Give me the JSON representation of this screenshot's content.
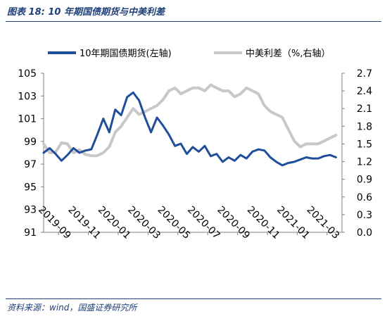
{
  "figure": {
    "title": "图表 18:  10 年期国债期货与中美利差",
    "source": "资料来源：wind，国盛证券研究所"
  },
  "colors": {
    "series1": "#1f4e9b",
    "series2": "#c8c8c8",
    "header": "#1f3f7a",
    "axis": "#7f7f7f",
    "text": "#000000"
  },
  "chart_data": {
    "type": "line",
    "legend_position": "top",
    "grid": false,
    "x_ticks": [
      "2019-09",
      "2019-11",
      "2020-01",
      "2020-03",
      "2020-05",
      "2020-07",
      "2020-09",
      "2020-11",
      "2021-01",
      "2021-03"
    ],
    "y_left": {
      "min": 91,
      "max": 105,
      "ticks": [
        "91",
        "93",
        "95",
        "97",
        "99",
        "101",
        "103",
        "105"
      ]
    },
    "y_right": {
      "min": 0,
      "max": 2.7,
      "ticks": [
        "0.0",
        "0.3",
        "0.6",
        "0.9",
        "1.2",
        "1.5",
        "1.8",
        "2.1",
        "2.4",
        "2.7"
      ]
    },
    "series": [
      {
        "name": "10年期国债期货(左轴)",
        "axis": "left",
        "x": [
          0,
          0.2,
          0.4,
          0.6,
          0.8,
          1.0,
          1.2,
          1.4,
          1.6,
          1.8,
          2.0,
          2.2,
          2.4,
          2.6,
          2.8,
          3.0,
          3.2,
          3.4,
          3.6,
          3.8,
          4.0,
          4.2,
          4.4,
          4.6,
          4.8,
          5.0,
          5.2,
          5.4,
          5.6,
          5.8,
          6.0,
          6.2,
          6.4,
          6.6,
          6.8,
          7.0,
          7.2,
          7.4,
          7.6,
          7.8,
          8.0,
          8.2,
          8.4,
          8.6,
          8.8,
          9.0,
          9.2,
          9.4,
          9.6,
          9.8
        ],
        "values": [
          98.0,
          98.4,
          97.9,
          97.3,
          97.8,
          98.4,
          98.0,
          98.2,
          98.3,
          99.6,
          101.0,
          99.8,
          101.8,
          101.3,
          102.9,
          103.3,
          102.6,
          101.1,
          99.8,
          101.1,
          100.4,
          99.6,
          98.6,
          98.8,
          97.9,
          98.5,
          98.1,
          98.6,
          97.7,
          97.9,
          97.2,
          97.6,
          97.3,
          97.8,
          97.5,
          98.1,
          98.3,
          98.2,
          97.6,
          97.2,
          96.9,
          97.1,
          97.2,
          97.4,
          97.6,
          97.5,
          97.5,
          97.7,
          97.8,
          97.6
        ]
      },
      {
        "name": "中美利差（%,右轴）",
        "axis": "right",
        "x": [
          0,
          0.2,
          0.4,
          0.6,
          0.8,
          1.0,
          1.2,
          1.4,
          1.6,
          1.8,
          2.0,
          2.2,
          2.4,
          2.6,
          2.8,
          3.0,
          3.2,
          3.4,
          3.6,
          3.8,
          4.0,
          4.2,
          4.4,
          4.6,
          4.8,
          5.0,
          5.2,
          5.4,
          5.6,
          5.8,
          6.0,
          6.2,
          6.4,
          6.6,
          6.8,
          7.0,
          7.2,
          7.4,
          7.6,
          7.8,
          8.0,
          8.2,
          8.4,
          8.6,
          8.8,
          9.0,
          9.2,
          9.4,
          9.6,
          9.8
        ],
        "values": [
          1.5,
          1.35,
          1.36,
          1.52,
          1.5,
          1.35,
          1.4,
          1.32,
          1.3,
          1.3,
          1.35,
          1.45,
          1.7,
          1.8,
          1.95,
          2.1,
          2.0,
          2.05,
          2.1,
          2.15,
          2.25,
          2.4,
          2.45,
          2.35,
          2.4,
          2.45,
          2.45,
          2.4,
          2.5,
          2.45,
          2.4,
          2.4,
          2.3,
          2.35,
          2.45,
          2.4,
          2.35,
          2.15,
          2.05,
          2.0,
          1.95,
          1.75,
          1.55,
          1.45,
          1.5,
          1.5,
          1.5,
          1.55,
          1.6,
          1.65
        ]
      }
    ]
  }
}
